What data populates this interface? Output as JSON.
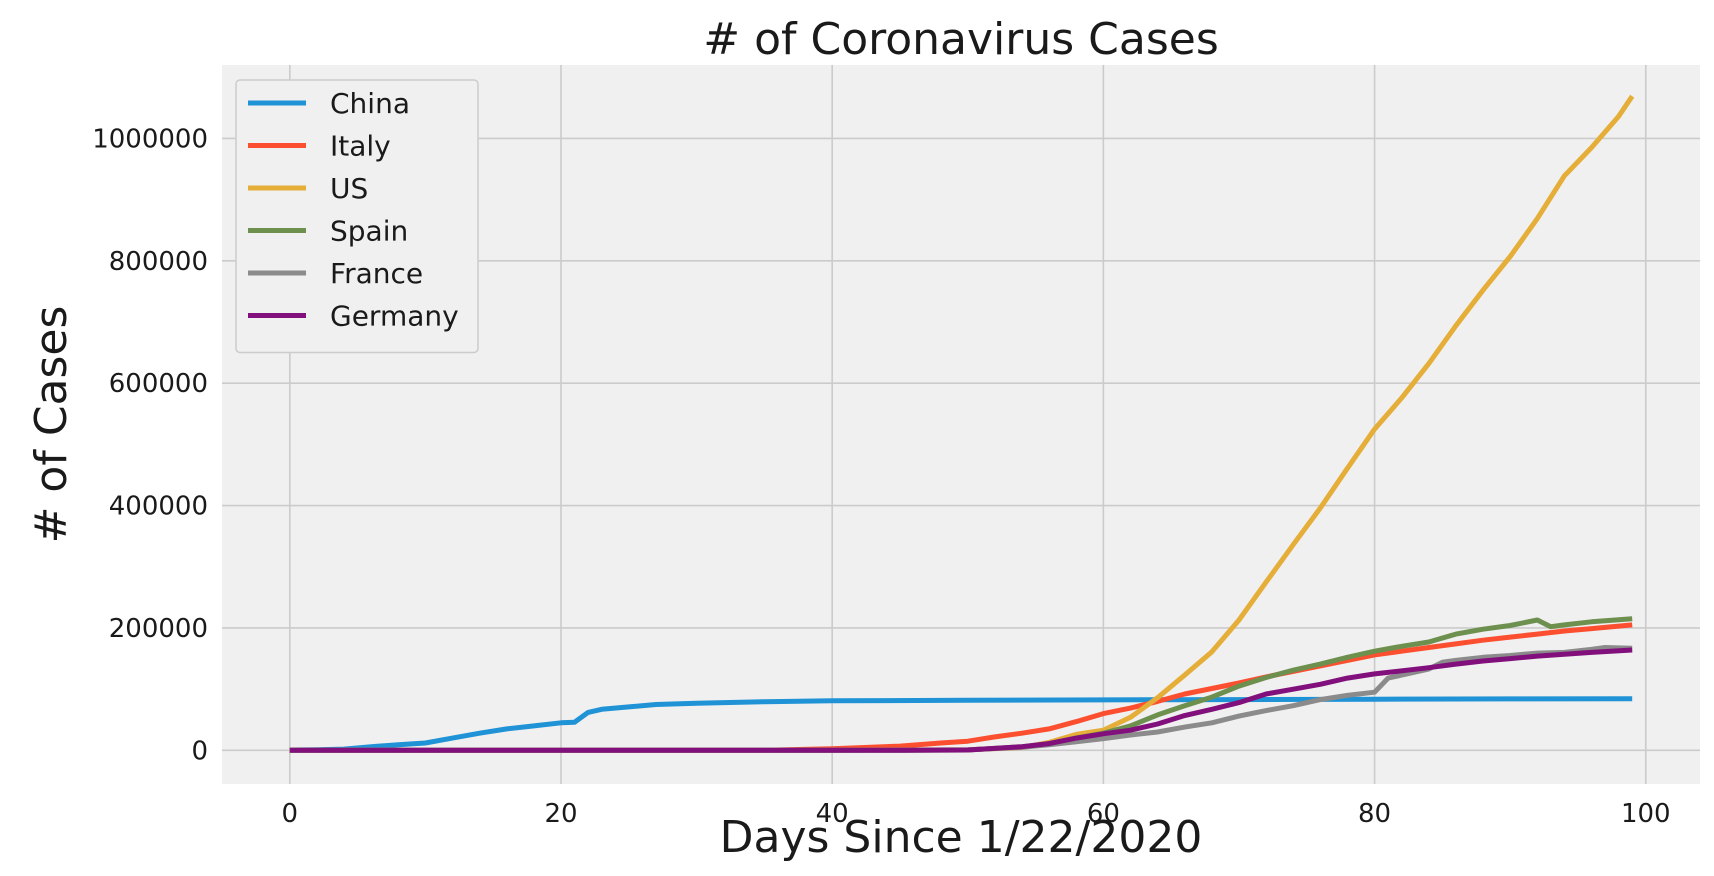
{
  "chart_data": {
    "type": "line",
    "title": "# of Coronavirus Cases",
    "xlabel": "Days Since 1/22/2020",
    "ylabel": "# of Cases",
    "xlim": [
      -5,
      104
    ],
    "ylim": [
      -55000,
      1120000
    ],
    "xticks": [
      0,
      20,
      40,
      60,
      80,
      100
    ],
    "xtick_labels": [
      "0",
      "20",
      "40",
      "60",
      "80",
      "100"
    ],
    "yticks": [
      0,
      200000,
      400000,
      600000,
      800000,
      1000000
    ],
    "ytick_labels": [
      "0",
      "200000",
      "400000",
      "600000",
      "800000",
      "1000000"
    ],
    "grid": true,
    "legend_position": "top-left",
    "series": [
      {
        "name": "China",
        "color": "#1f93d6",
        "points": [
          [
            0,
            548
          ],
          [
            2,
            900
          ],
          [
            4,
            2000
          ],
          [
            6,
            6000
          ],
          [
            8,
            9000
          ],
          [
            10,
            12000
          ],
          [
            12,
            20000
          ],
          [
            14,
            28000
          ],
          [
            16,
            35000
          ],
          [
            18,
            40000
          ],
          [
            20,
            45000
          ],
          [
            21,
            46000
          ],
          [
            22,
            62000
          ],
          [
            23,
            67000
          ],
          [
            25,
            71000
          ],
          [
            27,
            75000
          ],
          [
            30,
            77000
          ],
          [
            35,
            79500
          ],
          [
            40,
            81000
          ],
          [
            50,
            81800
          ],
          [
            60,
            82500
          ],
          [
            70,
            83000
          ],
          [
            80,
            83500
          ],
          [
            90,
            84000
          ],
          [
            99,
            84300
          ]
        ]
      },
      {
        "name": "Italy",
        "color": "#fc4f30",
        "points": [
          [
            0,
            0
          ],
          [
            30,
            0
          ],
          [
            35,
            150
          ],
          [
            40,
            2500
          ],
          [
            45,
            7000
          ],
          [
            48,
            12000
          ],
          [
            50,
            15000
          ],
          [
            52,
            22000
          ],
          [
            54,
            28000
          ],
          [
            56,
            35000
          ],
          [
            58,
            47000
          ],
          [
            60,
            60000
          ],
          [
            62,
            69000
          ],
          [
            64,
            80000
          ],
          [
            66,
            92000
          ],
          [
            68,
            101000
          ],
          [
            70,
            110000
          ],
          [
            72,
            120000
          ],
          [
            74,
            129000
          ],
          [
            76,
            138000
          ],
          [
            78,
            147000
          ],
          [
            80,
            156000
          ],
          [
            82,
            162000
          ],
          [
            84,
            168000
          ],
          [
            86,
            174000
          ],
          [
            88,
            180000
          ],
          [
            90,
            185000
          ],
          [
            92,
            190000
          ],
          [
            94,
            195000
          ],
          [
            96,
            199000
          ],
          [
            99,
            205000
          ]
        ]
      },
      {
        "name": "US",
        "color": "#e5ae38",
        "points": [
          [
            0,
            1
          ],
          [
            40,
            100
          ],
          [
            50,
            1000
          ],
          [
            54,
            4600
          ],
          [
            56,
            13000
          ],
          [
            58,
            26000
          ],
          [
            60,
            33000
          ],
          [
            62,
            54000
          ],
          [
            64,
            86000
          ],
          [
            66,
            123000
          ],
          [
            68,
            161000
          ],
          [
            70,
            213000
          ],
          [
            72,
            275000
          ],
          [
            74,
            336000
          ],
          [
            76,
            396000
          ],
          [
            78,
            461000
          ],
          [
            80,
            525000
          ],
          [
            82,
            576000
          ],
          [
            84,
            632000
          ],
          [
            86,
            694000
          ],
          [
            88,
            752000
          ],
          [
            90,
            807000
          ],
          [
            92,
            869000
          ],
          [
            94,
            939000
          ],
          [
            96,
            985000
          ],
          [
            98,
            1036000
          ],
          [
            99,
            1069000
          ]
        ]
      },
      {
        "name": "Spain",
        "color": "#6d904f",
        "points": [
          [
            0,
            0
          ],
          [
            45,
            0
          ],
          [
            50,
            500
          ],
          [
            54,
            6000
          ],
          [
            56,
            11000
          ],
          [
            58,
            20000
          ],
          [
            60,
            28000
          ],
          [
            62,
            40000
          ],
          [
            64,
            58000
          ],
          [
            66,
            73000
          ],
          [
            68,
            87000
          ],
          [
            70,
            105000
          ],
          [
            72,
            119000
          ],
          [
            74,
            131000
          ],
          [
            76,
            141000
          ],
          [
            78,
            152000
          ],
          [
            80,
            162000
          ],
          [
            82,
            170000
          ],
          [
            84,
            177000
          ],
          [
            86,
            190000
          ],
          [
            88,
            198000
          ],
          [
            90,
            204000
          ],
          [
            92,
            213000
          ],
          [
            93,
            202000
          ],
          [
            94,
            205000
          ],
          [
            96,
            210000
          ],
          [
            99,
            215000
          ]
        ]
      },
      {
        "name": "France",
        "color": "#8b8b8b",
        "points": [
          [
            0,
            0
          ],
          [
            45,
            0
          ],
          [
            50,
            1000
          ],
          [
            54,
            5000
          ],
          [
            56,
            9000
          ],
          [
            58,
            14000
          ],
          [
            60,
            19000
          ],
          [
            62,
            25000
          ],
          [
            64,
            30000
          ],
          [
            66,
            38000
          ],
          [
            68,
            45000
          ],
          [
            70,
            56000
          ],
          [
            72,
            65000
          ],
          [
            74,
            73000
          ],
          [
            76,
            83000
          ],
          [
            78,
            90000
          ],
          [
            80,
            95000
          ],
          [
            81,
            118000
          ],
          [
            82,
            123000
          ],
          [
            84,
            133000
          ],
          [
            85,
            144000
          ],
          [
            86,
            147000
          ],
          [
            88,
            152000
          ],
          [
            90,
            155000
          ],
          [
            92,
            159000
          ],
          [
            94,
            160000
          ],
          [
            96,
            165000
          ],
          [
            97,
            168000
          ],
          [
            99,
            167000
          ]
        ]
      },
      {
        "name": "Germany",
        "color": "#810f7c",
        "points": [
          [
            0,
            0
          ],
          [
            45,
            0
          ],
          [
            50,
            500
          ],
          [
            54,
            6000
          ],
          [
            56,
            11000
          ],
          [
            58,
            20000
          ],
          [
            60,
            27000
          ],
          [
            62,
            33000
          ],
          [
            64,
            43000
          ],
          [
            66,
            57000
          ],
          [
            68,
            67000
          ],
          [
            70,
            78000
          ],
          [
            72,
            92000
          ],
          [
            74,
            100000
          ],
          [
            76,
            108000
          ],
          [
            78,
            118000
          ],
          [
            80,
            125000
          ],
          [
            82,
            130000
          ],
          [
            84,
            135000
          ],
          [
            86,
            141000
          ],
          [
            88,
            146000
          ],
          [
            90,
            150000
          ],
          [
            92,
            154000
          ],
          [
            94,
            157000
          ],
          [
            96,
            160000
          ],
          [
            99,
            164000
          ]
        ]
      }
    ]
  },
  "colors": {
    "plot_background": "#f0f0f0",
    "grid": "#cbcbcb",
    "legend_border": "#cccccc"
  }
}
